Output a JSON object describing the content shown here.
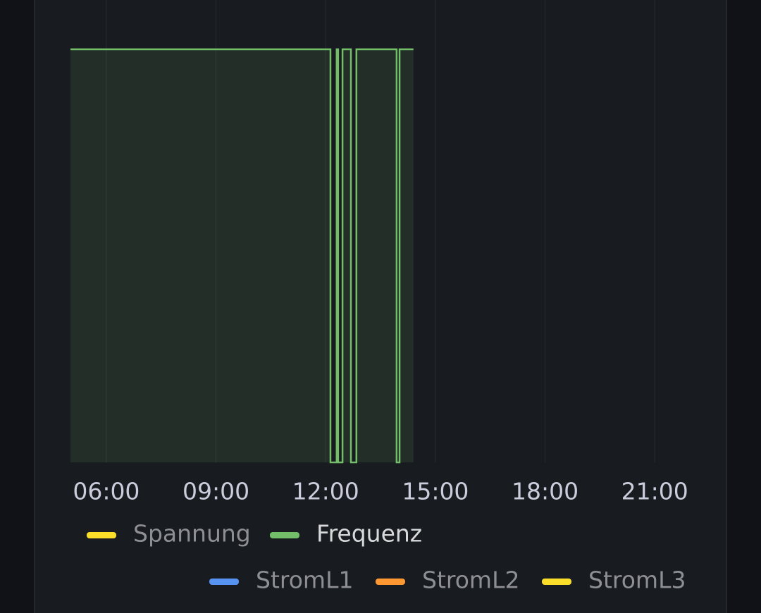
{
  "chart_data": {
    "type": "line",
    "x": [
      5.02,
      12.13,
      12.13,
      12.3,
      12.3,
      12.34,
      12.34,
      12.46,
      12.46,
      12.69,
      12.69,
      12.84,
      12.84,
      13.94,
      13.94,
      14.02,
      14.02,
      14.4
    ],
    "series": [
      {
        "name": "Spannung",
        "color": "#fade2a",
        "hidden": true
      },
      {
        "name": "Frequenz",
        "color": "#73bf69",
        "hidden": false,
        "values": [
          50,
          50,
          0,
          0,
          50,
          50,
          0,
          0,
          50,
          50,
          0,
          0,
          50,
          50,
          0,
          0,
          50,
          50
        ]
      },
      {
        "name": "StromL1",
        "color": "#5794f2",
        "hidden": true
      },
      {
        "name": "StromL2",
        "color": "#ff9830",
        "hidden": true
      },
      {
        "name": "StromL3",
        "color": "#fade2a",
        "hidden": true
      }
    ],
    "xlim": [
      5,
      23
    ],
    "xticks": [
      {
        "value": 6,
        "label": "06:00"
      },
      {
        "value": 9,
        "label": "09:00"
      },
      {
        "value": 12,
        "label": "12:00"
      },
      {
        "value": 15,
        "label": "15:00"
      },
      {
        "value": 18,
        "label": "18:00"
      },
      {
        "value": 21,
        "label": "21:00"
      }
    ],
    "ylim": [
      0,
      54
    ],
    "grid": true
  }
}
